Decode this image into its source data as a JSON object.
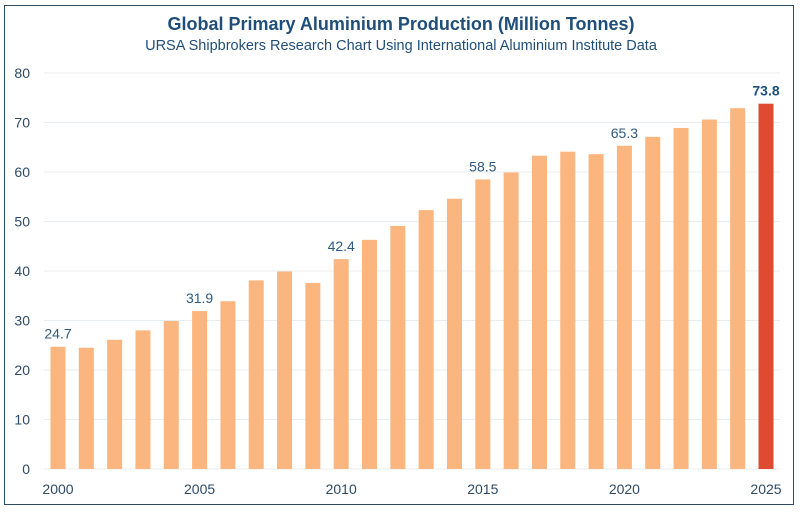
{
  "chart_data": {
    "type": "bar",
    "title": "Global Primary Aluminium Production (Million Tonnes)",
    "subtitle": "URSA Shipbrokers Research Chart Using International Aluminium Institute Data",
    "xlabel": "",
    "ylabel": "",
    "ylim": [
      0,
      80
    ],
    "yticks": [
      0,
      10,
      20,
      30,
      40,
      50,
      60,
      70,
      80
    ],
    "grid": true,
    "legend": "none",
    "categories": [
      2000,
      2001,
      2002,
      2003,
      2004,
      2005,
      2006,
      2007,
      2008,
      2009,
      2010,
      2011,
      2012,
      2013,
      2014,
      2015,
      2016,
      2017,
      2018,
      2019,
      2020,
      2021,
      2022,
      2023,
      2024,
      2025
    ],
    "xtick_labels": [
      "2000",
      "2005",
      "2010",
      "2015",
      "2020",
      "2025"
    ],
    "values": [
      24.7,
      24.5,
      26.1,
      28.0,
      29.9,
      31.9,
      33.9,
      38.1,
      39.9,
      37.6,
      42.4,
      46.3,
      49.1,
      52.3,
      54.6,
      58.5,
      59.9,
      63.3,
      64.1,
      63.6,
      65.3,
      67.1,
      68.9,
      70.6,
      72.9,
      73.8
    ],
    "data_labels": {
      "2000": "24.7",
      "2005": "31.9",
      "2010": "42.4",
      "2015": "58.5",
      "2020": "65.3",
      "2025": "73.8"
    },
    "highlight_category": 2025,
    "colors": {
      "bar": "#fbb57e",
      "highlight": "#e04a30",
      "grid": "#e8edf2",
      "text": "#2e4a66",
      "title": "#1f4e79"
    }
  }
}
